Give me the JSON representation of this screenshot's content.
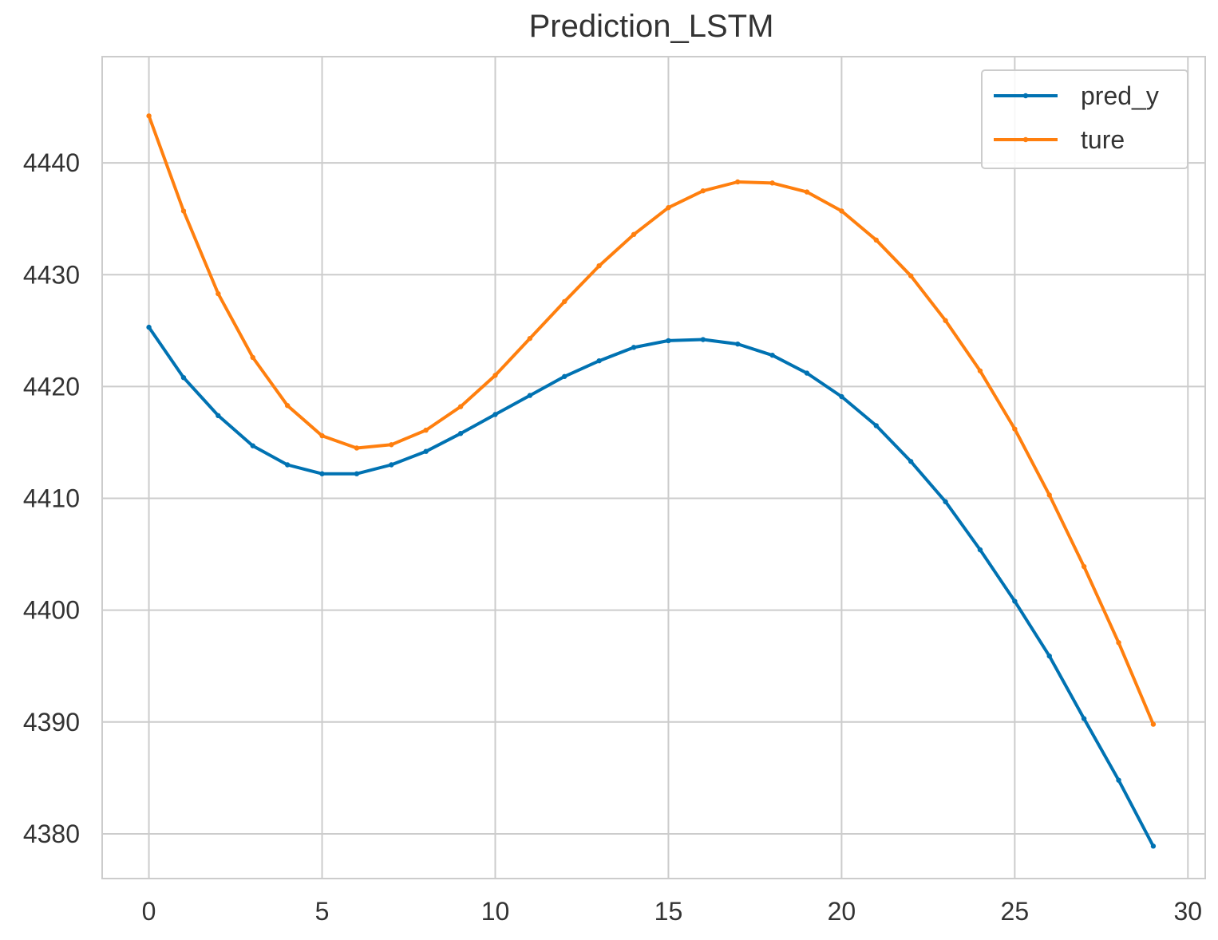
{
  "chart_data": {
    "type": "line",
    "title": "Prediction_LSTM",
    "xlabel": "",
    "ylabel": "",
    "xlim": [
      -1.35,
      30.5
    ],
    "ylim": [
      4376.0,
      4449.5
    ],
    "x_ticks": [
      0,
      5,
      10,
      15,
      20,
      25,
      30
    ],
    "y_ticks": [
      4380,
      4390,
      4400,
      4410,
      4420,
      4430,
      4440
    ],
    "grid": true,
    "legend_position": "top-right",
    "x": [
      0,
      1,
      2,
      3,
      4,
      5,
      6,
      7,
      8,
      9,
      10,
      11,
      12,
      13,
      14,
      15,
      16,
      17,
      18,
      19,
      20,
      21,
      22,
      23,
      24,
      25,
      26,
      27,
      28,
      29
    ],
    "series": [
      {
        "name": "pred_y",
        "color": "#0072B2",
        "values": [
          4425.3,
          4420.8,
          4417.4,
          4414.7,
          4413.0,
          4412.2,
          4412.2,
          4413.0,
          4414.2,
          4415.8,
          4417.5,
          4419.2,
          4420.9,
          4422.3,
          4423.5,
          4424.1,
          4424.2,
          4423.8,
          4422.8,
          4421.2,
          4419.1,
          4416.5,
          4413.3,
          4409.7,
          4405.4,
          4400.8,
          4395.9,
          4390.3,
          4384.8,
          4378.9
        ]
      },
      {
        "name": "ture",
        "color": "#FF7F0E",
        "values": [
          4444.2,
          4435.7,
          4428.3,
          4422.6,
          4418.3,
          4415.6,
          4414.5,
          4414.8,
          4416.1,
          4418.2,
          4421.0,
          4424.3,
          4427.6,
          4430.8,
          4433.6,
          4436.0,
          4437.5,
          4438.3,
          4438.2,
          4437.4,
          4435.7,
          4433.1,
          4429.9,
          4425.9,
          4421.4,
          4416.2,
          4410.3,
          4403.9,
          4397.1,
          4389.8
        ]
      }
    ]
  }
}
